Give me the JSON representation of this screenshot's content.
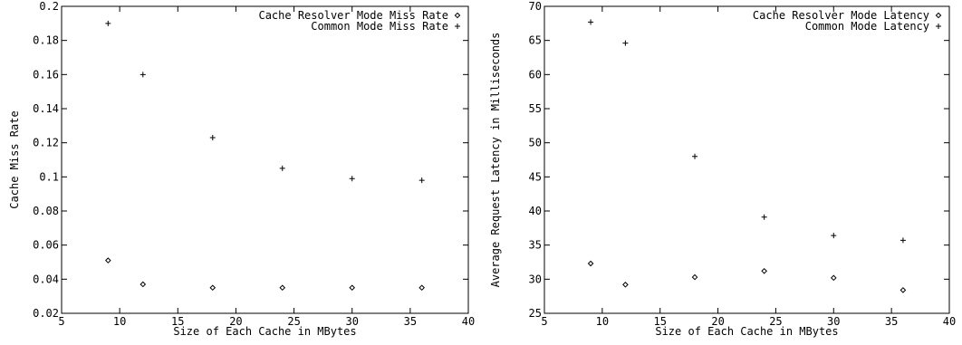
{
  "chart_data": [
    {
      "type": "scatter",
      "title": "",
      "xlabel": "Size of Each Cache in MBytes",
      "ylabel": "Cache Miss Rate",
      "xlim": [
        5,
        40
      ],
      "ylim": [
        0.02,
        0.2
      ],
      "xticks": [
        5,
        10,
        15,
        20,
        25,
        30,
        35,
        40
      ],
      "xtick_labels": [
        "5",
        "10",
        "15",
        "20",
        "25",
        "30",
        "35",
        "40"
      ],
      "yticks": [
        0.02,
        0.04,
        0.06,
        0.08,
        0.1,
        0.12,
        0.14,
        0.16,
        0.18,
        0.2
      ],
      "ytick_labels": [
        "0.02",
        "0.04",
        "0.06",
        "0.08",
        "0.1",
        "0.12",
        "0.14",
        "0.16",
        "0.18",
        "0.2"
      ],
      "grid": false,
      "legend": "top-right",
      "series": [
        {
          "name": "Cache Resolver Mode Miss Rate",
          "marker": "diamond",
          "x": [
            9,
            12,
            18,
            24,
            30,
            36
          ],
          "y": [
            0.051,
            0.037,
            0.035,
            0.035,
            0.035,
            0.035
          ]
        },
        {
          "name": "Common Mode Miss Rate",
          "marker": "plus",
          "x": [
            9,
            12,
            18,
            24,
            30,
            36
          ],
          "y": [
            0.19,
            0.16,
            0.123,
            0.105,
            0.099,
            0.098
          ]
        }
      ]
    },
    {
      "type": "scatter",
      "title": "",
      "xlabel": "Size of Each Cache in MBytes",
      "ylabel": "Average Request Latency in Milliseconds",
      "xlim": [
        5,
        40
      ],
      "ylim": [
        25,
        70
      ],
      "xticks": [
        5,
        10,
        15,
        20,
        25,
        30,
        35,
        40
      ],
      "xtick_labels": [
        "5",
        "10",
        "15",
        "20",
        "25",
        "30",
        "35",
        "40"
      ],
      "yticks": [
        25,
        30,
        35,
        40,
        45,
        50,
        55,
        60,
        65,
        70
      ],
      "ytick_labels": [
        "25",
        "30",
        "35",
        "40",
        "45",
        "50",
        "55",
        "60",
        "65",
        "70"
      ],
      "grid": false,
      "legend": "top-right",
      "series": [
        {
          "name": "Cache Resolver Mode Latency",
          "marker": "diamond",
          "x": [
            9,
            12,
            18,
            24,
            30,
            36
          ],
          "y": [
            32.3,
            29.2,
            30.3,
            31.2,
            30.2,
            28.4
          ]
        },
        {
          "name": "Common Mode Latency",
          "marker": "plus",
          "x": [
            9,
            12,
            18,
            24,
            30,
            36
          ],
          "y": [
            67.7,
            64.6,
            48.0,
            39.1,
            36.4,
            35.7
          ]
        }
      ]
    }
  ]
}
